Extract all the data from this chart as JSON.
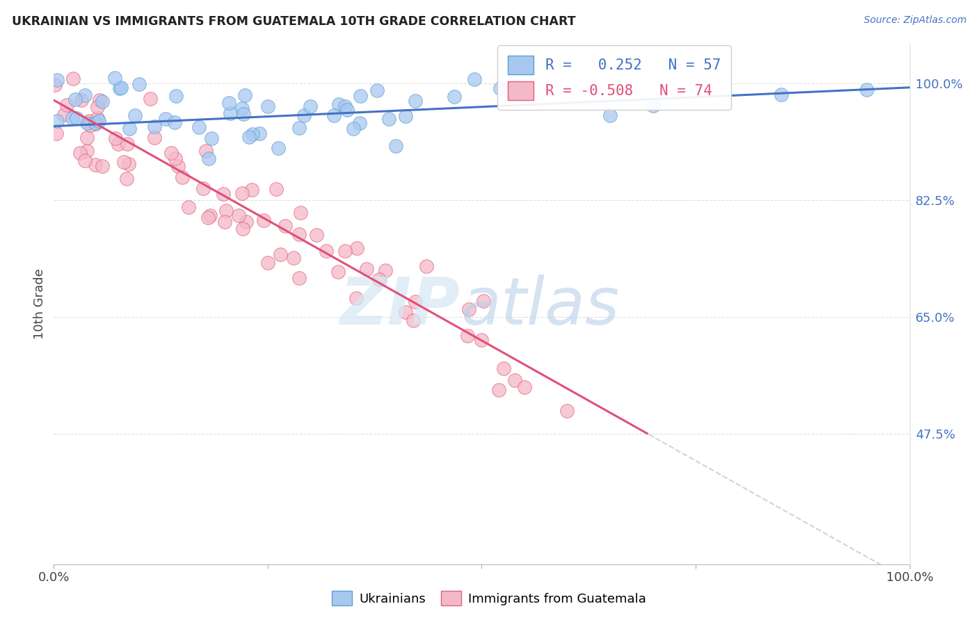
{
  "title": "UKRAINIAN VS IMMIGRANTS FROM GUATEMALA 10TH GRADE CORRELATION CHART",
  "source": "Source: ZipAtlas.com",
  "ylabel": "10th Grade",
  "yaxis_labels": [
    "100.0%",
    "82.5%",
    "65.0%",
    "47.5%"
  ],
  "yaxis_values": [
    1.0,
    0.825,
    0.65,
    0.475
  ],
  "xlim": [
    0.0,
    1.0
  ],
  "ylim": [
    0.28,
    1.06
  ],
  "R_blue": 0.252,
  "N_blue": 57,
  "R_pink": -0.508,
  "N_pink": 74,
  "blue_fill": "#A8C8F0",
  "blue_edge": "#5A9FD4",
  "pink_fill": "#F5B8C8",
  "pink_edge": "#E06080",
  "line_blue_color": "#4472C4",
  "line_pink_color": "#E0507A",
  "line_gray_color": "#C8C8C8",
  "legend_label_blue": "Ukrainians",
  "legend_label_pink": "Immigrants from Guatemala",
  "background_color": "#FFFFFF",
  "grid_color": "#DDDDDD",
  "blue_line_intercept": 0.936,
  "blue_line_slope": 0.058,
  "pink_line_intercept": 0.975,
  "pink_line_slope": -0.72
}
